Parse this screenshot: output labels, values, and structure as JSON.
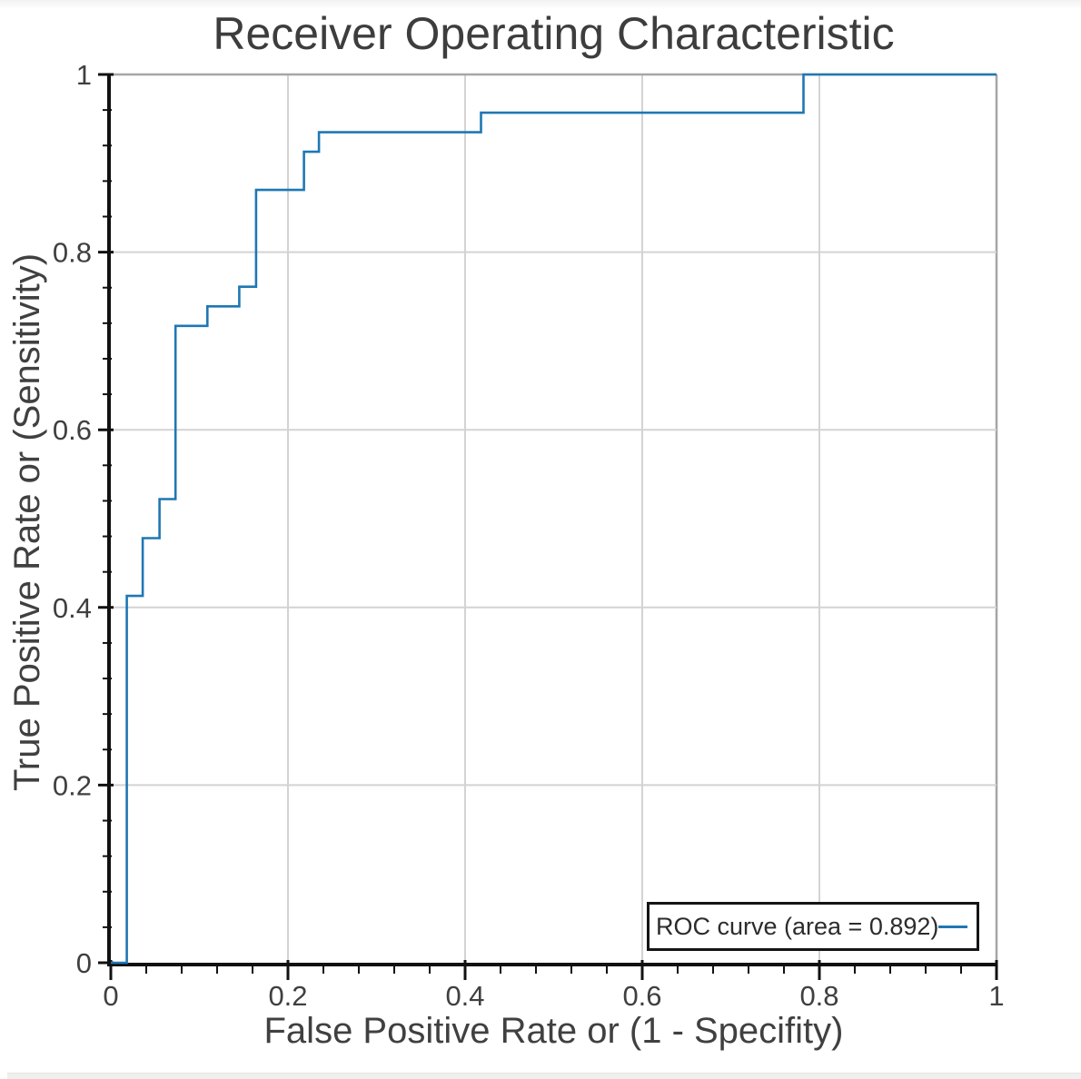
{
  "chart_data": {
    "type": "line",
    "title": "Receiver Operating Characteristic",
    "xlabel": "False Positive Rate or (1 - Specifity)",
    "ylabel": "True Positive Rate or (Sensitivity)",
    "xlim": [
      0,
      1
    ],
    "ylim": [
      0,
      1
    ],
    "xticks": [
      0,
      0.2,
      0.4,
      0.6,
      0.8,
      1
    ],
    "xtick_labels": [
      "0",
      "0.2",
      "0.4",
      "0.6",
      "0.8",
      "1"
    ],
    "yticks": [
      0,
      0.2,
      0.4,
      0.6,
      0.8,
      1
    ],
    "ytick_labels": [
      "0",
      "0.2",
      "0.4",
      "0.6",
      "0.8",
      "1"
    ],
    "minor_tick_step": 0.04,
    "grid": true,
    "legend": {
      "label": "ROC curve (area = 0.892)",
      "position": "lower right"
    },
    "series": [
      {
        "name": "ROC curve",
        "auc": 0.892,
        "color": "#1f77b4",
        "drawstyle": "steps",
        "points": [
          [
            0,
            0
          ],
          [
            0.018,
            0
          ],
          [
            0.018,
            0.413
          ],
          [
            0.036,
            0.413
          ],
          [
            0.036,
            0.478
          ],
          [
            0.055,
            0.478
          ],
          [
            0.055,
            0.522
          ],
          [
            0.073,
            0.522
          ],
          [
            0.073,
            0.717
          ],
          [
            0.109,
            0.717
          ],
          [
            0.109,
            0.739
          ],
          [
            0.145,
            0.739
          ],
          [
            0.145,
            0.761
          ],
          [
            0.164,
            0.761
          ],
          [
            0.164,
            0.87
          ],
          [
            0.218,
            0.87
          ],
          [
            0.218,
            0.913
          ],
          [
            0.235,
            0.913
          ],
          [
            0.235,
            0.935
          ],
          [
            0.418,
            0.935
          ],
          [
            0.418,
            0.957
          ],
          [
            0.782,
            0.957
          ],
          [
            0.782,
            1
          ],
          [
            1,
            1
          ]
        ]
      }
    ],
    "colors": {
      "curve": "#1f77b4",
      "grid": "#d3d3d3",
      "box": "#a6a6a6",
      "axis": "#111111",
      "text": "#3f3f3f"
    }
  }
}
